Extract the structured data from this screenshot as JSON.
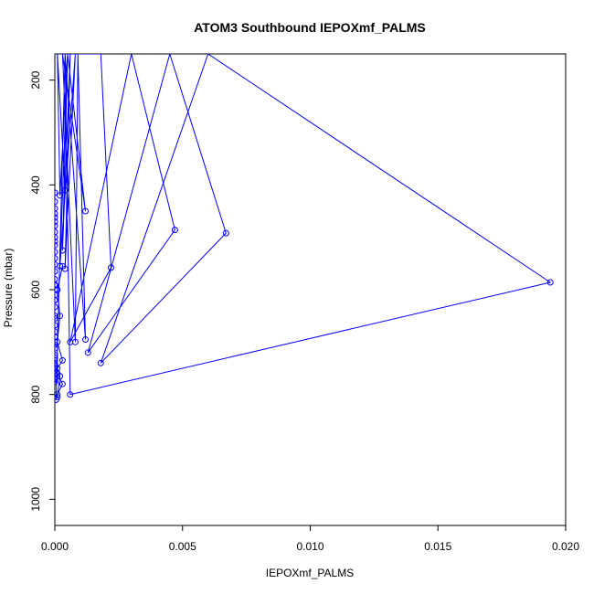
{
  "chart_data": {
    "type": "line",
    "title": "ATOM3 Southbound IEPOXmf_PALMS",
    "xlabel": "IEPOXmf_PALMS",
    "ylabel": "Pressure (mbar)",
    "xlim": [
      0.0,
      0.02
    ],
    "ylim": [
      1050,
      150
    ],
    "y_reversed": true,
    "x_ticks": [
      "0.000",
      "0.005",
      "0.010",
      "0.015",
      "0.020"
    ],
    "y_ticks": [
      "200",
      "400",
      "600",
      "800",
      "1000"
    ],
    "grid": false,
    "color": "#0000ff",
    "marker": "open-circle",
    "series": [
      {
        "x": [
          0.0001,
          0.0004,
          0.0001,
          0.0002,
          0.0005,
          0.0003,
          0.0006,
          0.0004,
          0.0008,
          0.0002,
          0.0005,
          0.0012,
          0.0003,
          0.0008,
          0.0009,
          0.0012,
          0.0004,
          0.0018,
          0.0022,
          0.0006,
          0.003,
          0.0047,
          0.0013,
          0.0045,
          0.0067,
          0.0018,
          0.006,
          0.0194,
          0.0006,
          0.0004,
          5e-05,
          0.0001,
          0.0003,
          0.0001
        ],
        "y": [
          150,
          410,
          150,
          420,
          150,
          525,
          150,
          560,
          150,
          555,
          150,
          450,
          150,
          700,
          150,
          695,
          150,
          150,
          558,
          700,
          150,
          486,
          720,
          150,
          492,
          740,
          150,
          586,
          800,
          150,
          810,
          800,
          780,
          760
        ]
      },
      {
        "x": [
          0.0,
          0.0,
          0.0,
          0.0,
          0.0,
          0.0,
          0.0,
          0.0,
          0.0,
          0.0,
          0.0,
          0.0,
          0.0,
          0.0,
          0.0,
          0.0,
          0.0,
          0.0,
          0.0,
          0.0,
          0.0,
          0.0,
          0.0,
          0.0,
          0.0,
          0.0,
          0.0,
          0.0,
          0.0,
          0.0,
          0.0,
          0.0,
          0.0,
          0.0,
          0.0,
          0.0,
          0.0,
          0.0,
          0.0,
          0.0,
          0.0,
          0.0,
          0.0,
          0.0
        ],
        "y": [
          415,
          432,
          445,
          455,
          462,
          470,
          478,
          490,
          500,
          508,
          515,
          528,
          540,
          552,
          565,
          580,
          592,
          600,
          610,
          620,
          633,
          650,
          668,
          680,
          690,
          700,
          712,
          725,
          735,
          742,
          748,
          755,
          762,
          768,
          772,
          776,
          770,
          745,
          730,
          705,
          690,
          655,
          620,
          590
        ]
      },
      {
        "x": [
          0.0003,
          0.0001,
          0.0002,
          0.0001,
          0.0003,
          0.0001,
          0.0002,
          0.0001
        ],
        "y": [
          555,
          600,
          650,
          700,
          735,
          750,
          765,
          805
        ]
      }
    ]
  }
}
